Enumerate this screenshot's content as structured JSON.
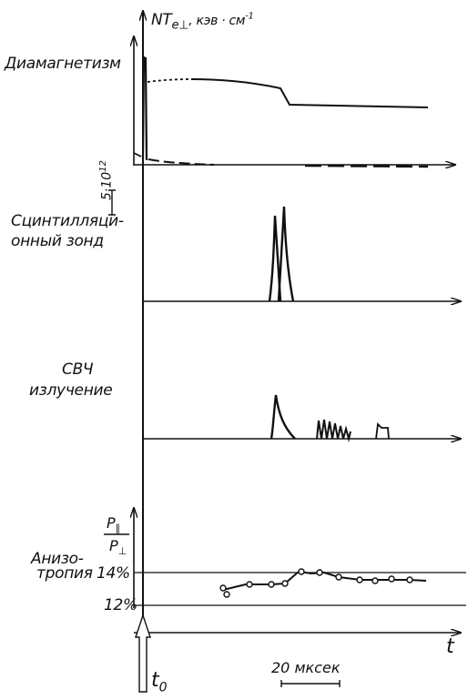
{
  "header": {
    "axis_label_main": "NT",
    "axis_label_sub": "e⊥",
    "axis_label_units": ", кэв · см",
    "axis_label_exp": "-1"
  },
  "panels": {
    "diamagnetism": {
      "label": "Диамагнетизм",
      "scale_label": "5·10",
      "scale_exp": "12"
    },
    "scintillation": {
      "label_line1": "Сцинтилляци-",
      "label_line2": "онный зонд"
    },
    "microwave": {
      "label_line1": "СВЧ",
      "label_line2": "излучение"
    },
    "anisotropy": {
      "ratio_top": "P",
      "ratio_top_sub": "∥",
      "ratio_bottom": "P",
      "ratio_bottom_sub": "⊥",
      "label_line1": "Анизо-",
      "label_line2": "тропия",
      "level_14": "14%",
      "level_12": "12%"
    }
  },
  "footer": {
    "t_label": "t",
    "t0_main": "t",
    "t0_sub": "0",
    "time_scale": "20 мксек"
  }
}
